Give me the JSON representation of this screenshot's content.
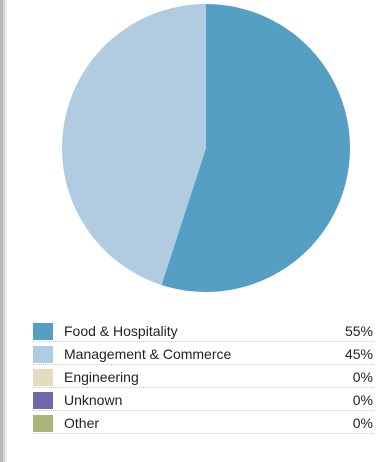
{
  "chart_data": {
    "type": "pie",
    "title": "",
    "slices": [
      {
        "label": "Food & Hospitality",
        "value": 55,
        "display": "55%",
        "color": "#559ec4"
      },
      {
        "label": "Management & Commerce",
        "value": 45,
        "display": "45%",
        "color": "#b1cce0"
      },
      {
        "label": "Engineering",
        "value": 0,
        "display": "0%",
        "color": "#e2ddbf"
      },
      {
        "label": "Unknown",
        "value": 0,
        "display": "0%",
        "color": "#6e6aaa"
      },
      {
        "label": "Other",
        "value": 0,
        "display": "0%",
        "color": "#aab579"
      }
    ],
    "legend_placement": "bottom"
  }
}
